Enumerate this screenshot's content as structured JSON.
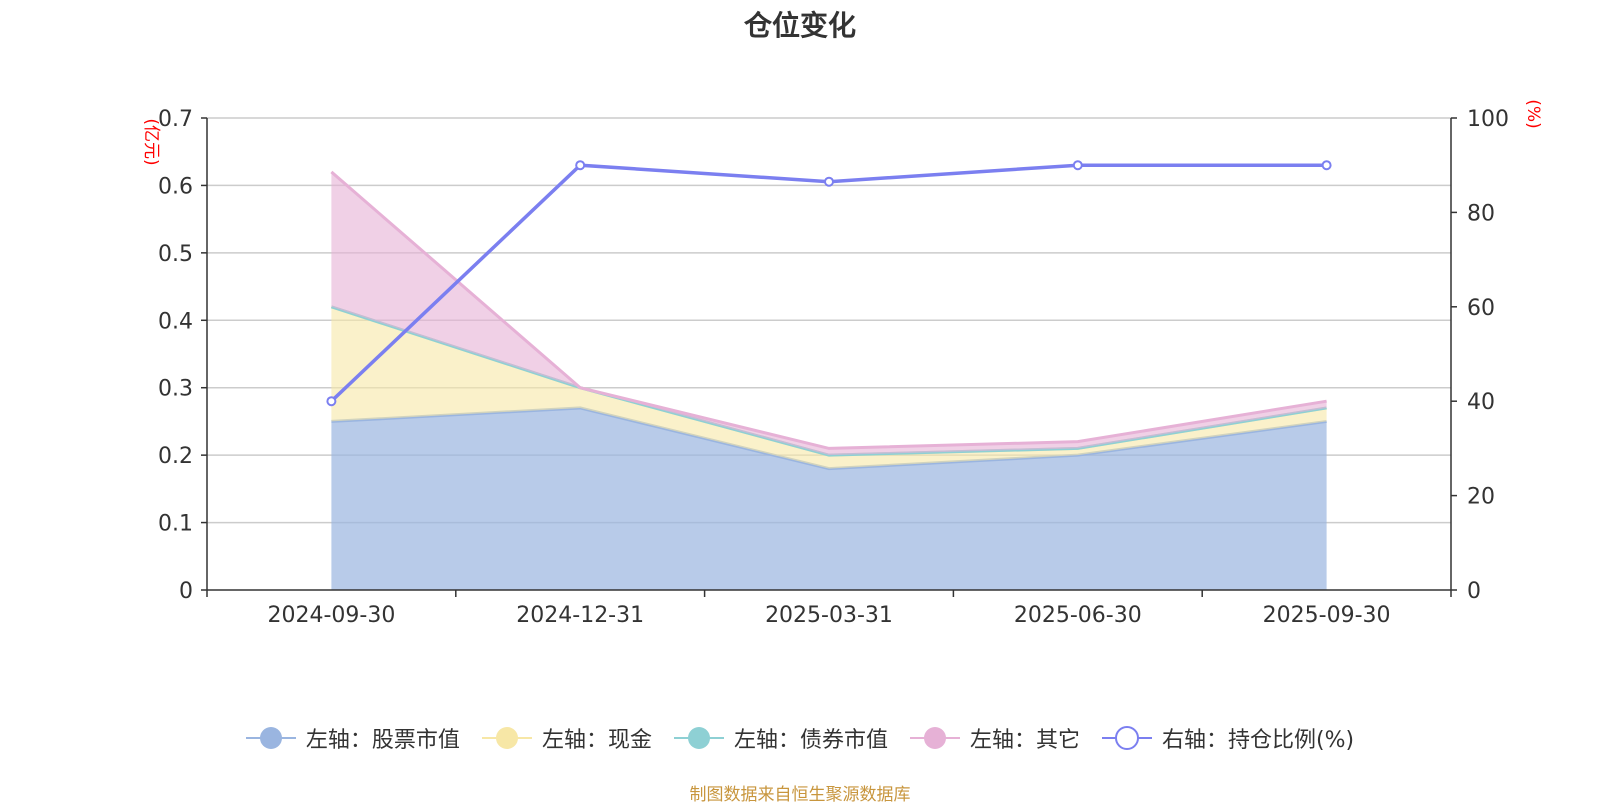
{
  "title": "仓位变化",
  "source": "制图数据来自恒生聚源数据库",
  "chart_data": {
    "type": "area",
    "categories": [
      "2024-09-30",
      "2024-12-31",
      "2025-03-31",
      "2025-06-30",
      "2025-09-30"
    ],
    "left_axis": {
      "unit": "(亿元)",
      "ylim": [
        0,
        0.7
      ],
      "ticks": [
        "0",
        "0.1",
        "0.2",
        "0.3",
        "0.4",
        "0.5",
        "0.6",
        "0.7"
      ]
    },
    "right_axis": {
      "unit": "(%)",
      "ylim": [
        0,
        100
      ],
      "ticks": [
        "0",
        "20",
        "40",
        "60",
        "80",
        "100"
      ]
    },
    "stacked_series": [
      {
        "name": "左轴：股票市值",
        "values": [
          0.25,
          0.27,
          0.18,
          0.2,
          0.25
        ],
        "color": "#9ab5e0"
      },
      {
        "name": "左轴：现金",
        "values": [
          0.17,
          0.03,
          0.02,
          0.01,
          0.02
        ],
        "color": "#f7e7a6"
      },
      {
        "name": "左轴：债券市值",
        "values": [
          0,
          0,
          0,
          0,
          0
        ],
        "color": "#8ed0d4"
      },
      {
        "name": "左轴：其它",
        "values": [
          0.2,
          0.0,
          0.01,
          0.01,
          0.01
        ],
        "color": "#e6b1d6"
      }
    ],
    "line_series": {
      "name": "右轴：持仓比例(%)",
      "values": [
        40,
        90,
        86.5,
        90,
        90
      ],
      "color": "#7b7ff0"
    },
    "grid": true,
    "legend_position": "bottom"
  }
}
